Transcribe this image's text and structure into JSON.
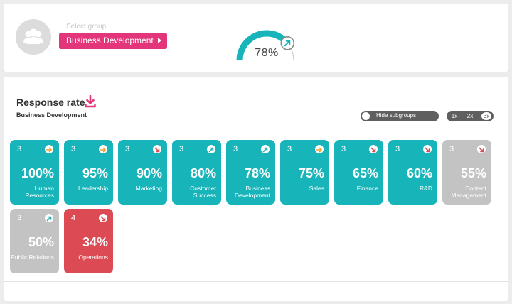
{
  "header": {
    "select_label": "Select group",
    "selected_group": "Business Development",
    "gauge_value": "78%",
    "gauge_fraction": 0.78
  },
  "response": {
    "title": "Response rate",
    "subtitle": "Business Development",
    "toggle_label": "Hide subgroups",
    "zoom_options": [
      "1x",
      "2x",
      "3x"
    ],
    "zoom_selected": "3x"
  },
  "colors": {
    "teal": "#17b5ba",
    "grey": "#c3c3c3",
    "red": "#dc4a54",
    "pink": "#e2357a",
    "arrow_up": "#2aaeb5",
    "arrow_side": "#f0a030",
    "arrow_down": "#dc4a54"
  },
  "tiles": [
    {
      "count": "3",
      "percent": "100%",
      "name": "Human Resources",
      "status": "teal",
      "trend": "right"
    },
    {
      "count": "3",
      "percent": "95%",
      "name": "Leadership",
      "status": "teal",
      "trend": "right"
    },
    {
      "count": "3",
      "percent": "90%",
      "name": "Marketing",
      "status": "teal",
      "trend": "down"
    },
    {
      "count": "3",
      "percent": "80%",
      "name": "Customer Success",
      "status": "teal",
      "trend": "up"
    },
    {
      "count": "3",
      "percent": "78%",
      "name": "Business Development",
      "status": "teal",
      "trend": "up"
    },
    {
      "count": "3",
      "percent": "75%",
      "name": "Sales",
      "status": "teal",
      "trend": "right"
    },
    {
      "count": "3",
      "percent": "65%",
      "name": "Finance",
      "status": "teal",
      "trend": "down"
    },
    {
      "count": "3",
      "percent": "60%",
      "name": "R&D",
      "status": "teal",
      "trend": "down"
    },
    {
      "count": "3",
      "percent": "55%",
      "name": "Content Management",
      "status": "grey",
      "trend": "down"
    },
    {
      "count": "3",
      "percent": "50%",
      "name": "Public Relations",
      "status": "grey",
      "trend": "up"
    },
    {
      "count": "4",
      "percent": "34%",
      "name": "Operations",
      "status": "red",
      "trend": "down"
    }
  ]
}
